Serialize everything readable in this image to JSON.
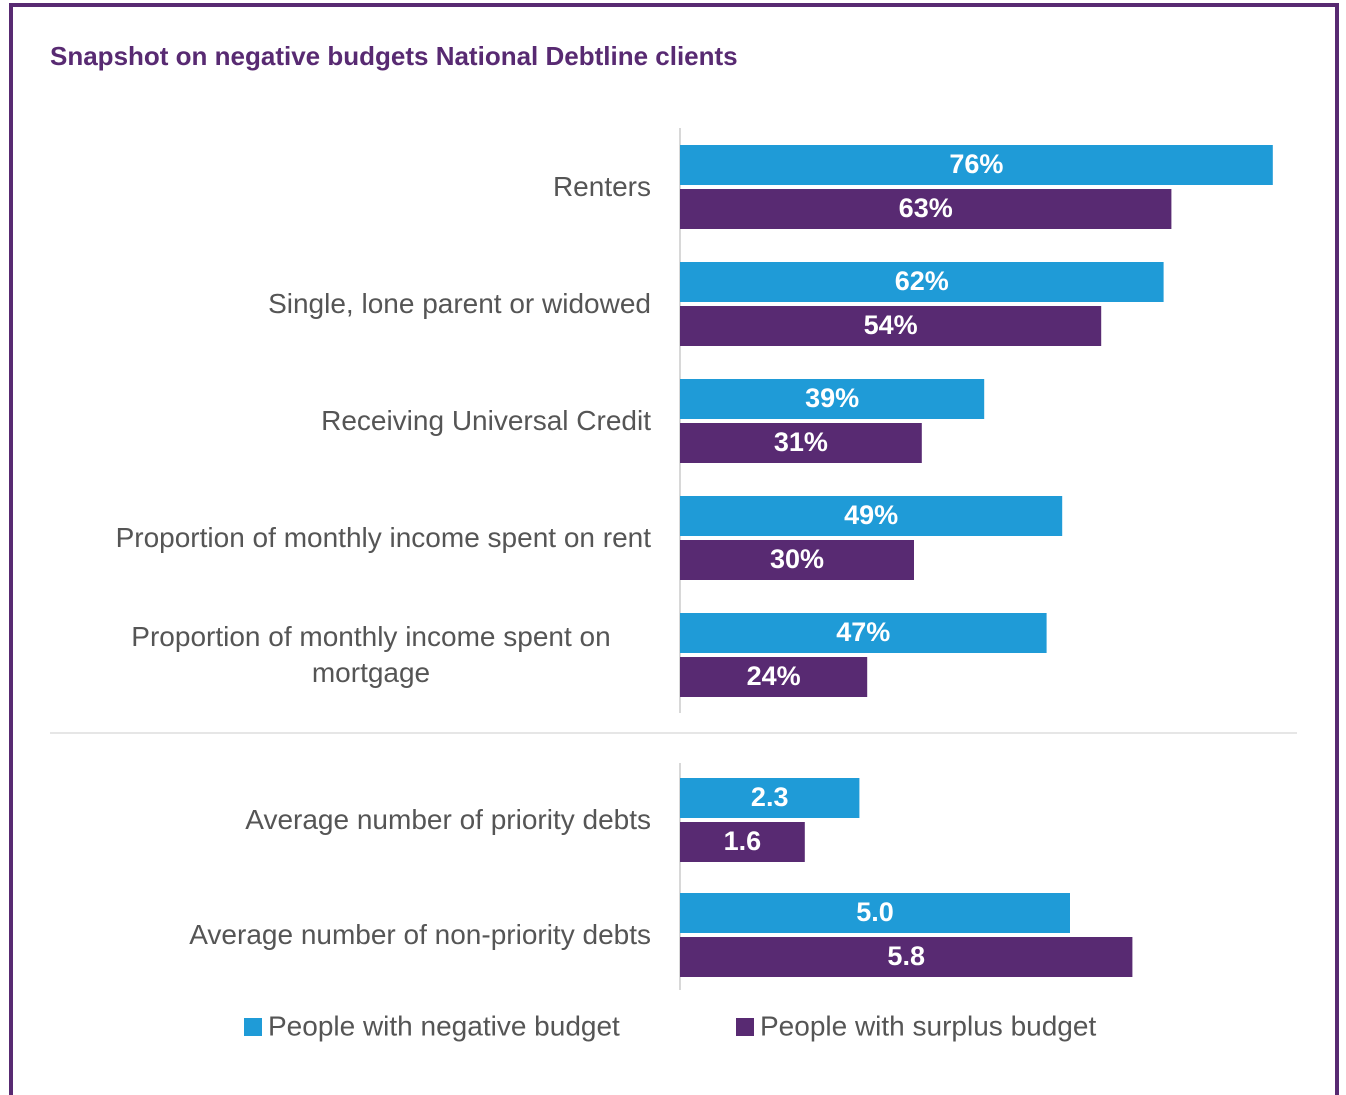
{
  "title": "Snapshot on negative budgets National Debtline clients",
  "chart_data": [
    {
      "type": "bar",
      "orientation": "horizontal",
      "categories": [
        "Renters",
        "Single, lone parent or widowed",
        "Receiving Universal Credit",
        "Proportion of monthly income spent on rent",
        "Proportion of monthly income spent on mortgage"
      ],
      "xlim": [
        0,
        100
      ],
      "series": [
        {
          "name": "People with negative budget",
          "color": "#1f9bd7",
          "values": [
            76,
            62,
            39,
            49,
            47
          ],
          "value_labels": [
            "76%",
            "62%",
            "39%",
            "49%",
            "47%"
          ]
        },
        {
          "name": "People with surplus budget",
          "color": "#582a72",
          "values": [
            63,
            54,
            31,
            30,
            24
          ],
          "value_labels": [
            "63%",
            "54%",
            "31%",
            "30%",
            "24%"
          ]
        }
      ]
    },
    {
      "type": "bar",
      "orientation": "horizontal",
      "categories": [
        "Average number of priority debts",
        "Average number of non-priority debts"
      ],
      "xlim": [
        0,
        10
      ],
      "series": [
        {
          "color": "#1f9bd7",
          "values": [
            2.3,
            5.0
          ],
          "value_labels": [
            "2.3",
            "5.0"
          ]
        },
        {
          "color": "#582a72",
          "values": [
            1.6,
            5.8
          ],
          "value_labels": [
            "1.6",
            "5.8"
          ]
        }
      ]
    }
  ]
}
